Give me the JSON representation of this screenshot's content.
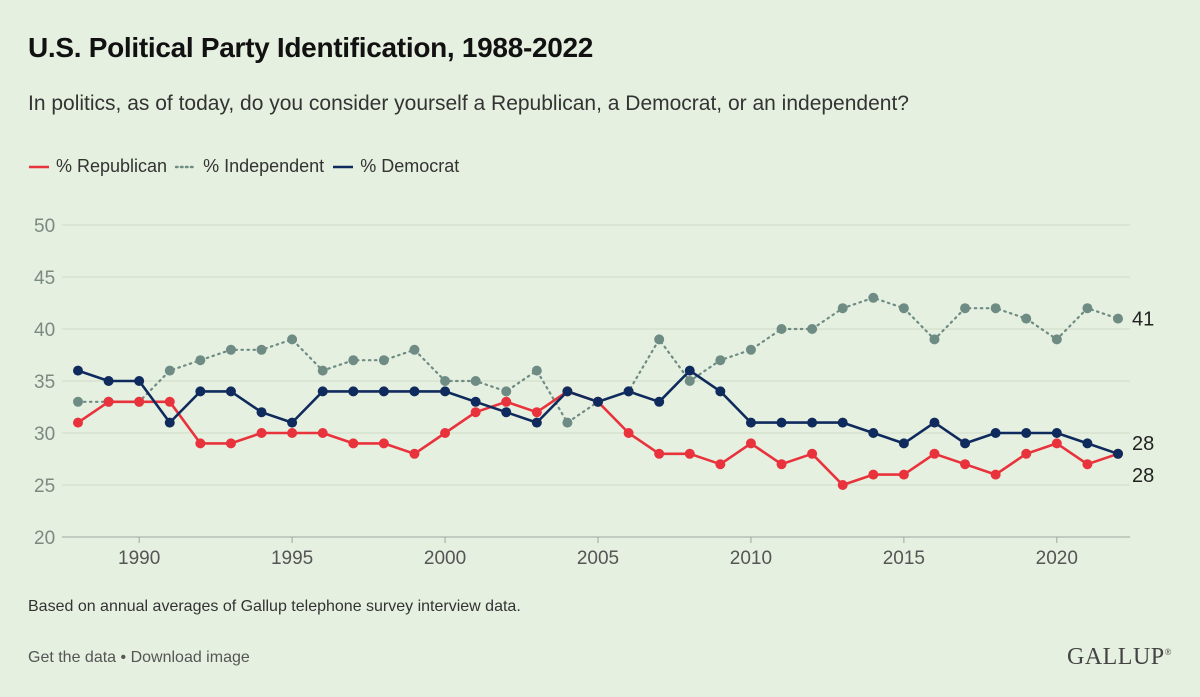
{
  "header": {
    "title": "U.S. Political Party Identification, 1988-2022",
    "subtitle": "In politics, as of today, do you consider yourself a Republican, a Democrat, or an independent?"
  },
  "footer": {
    "note": "Based on annual averages of Gallup telephone survey interview data.",
    "get_data": "Get the data",
    "separator": "•",
    "download": "Download image",
    "brand": "GALLUP",
    "brand_mark": "®"
  },
  "chart_data": {
    "type": "line",
    "title": "U.S. Political Party Identification, 1988-2022",
    "xlabel": "",
    "ylabel": "",
    "ylim": [
      20,
      50
    ],
    "xlim": [
      1988,
      2022
    ],
    "yticks": [
      20,
      25,
      30,
      35,
      40,
      45,
      50
    ],
    "xticks": [
      1990,
      1995,
      2000,
      2005,
      2010,
      2015,
      2020
    ],
    "grid": true,
    "legend_position": "top-left",
    "x": [
      1988,
      1989,
      1990,
      1991,
      1992,
      1993,
      1994,
      1995,
      1996,
      1997,
      1998,
      1999,
      2000,
      2001,
      2002,
      2003,
      2004,
      2005,
      2006,
      2007,
      2008,
      2009,
      2010,
      2011,
      2012,
      2013,
      2014,
      2015,
      2016,
      2017,
      2018,
      2019,
      2020,
      2021,
      2022
    ],
    "series": [
      {
        "name": "% Republican",
        "color": "#e8323c",
        "style": "solid",
        "markers": true,
        "end_label": "28",
        "values": [
          31,
          33,
          33,
          33,
          29,
          29,
          30,
          30,
          30,
          29,
          29,
          28,
          30,
          32,
          33,
          32,
          34,
          33,
          30,
          28,
          28,
          27,
          29,
          27,
          28,
          25,
          26,
          26,
          28,
          27,
          26,
          28,
          29,
          27,
          28
        ]
      },
      {
        "name": "% Independent",
        "color": "#6e8c84",
        "style": "dotted",
        "markers": true,
        "end_label": "41",
        "values": [
          33,
          33,
          33,
          36,
          37,
          38,
          38,
          39,
          36,
          37,
          37,
          38,
          35,
          35,
          34,
          36,
          31,
          33,
          34,
          39,
          35,
          37,
          38,
          40,
          40,
          42,
          43,
          42,
          39,
          42,
          42,
          41,
          39,
          42,
          41
        ]
      },
      {
        "name": "% Democrat",
        "color": "#0f2a5c",
        "style": "solid",
        "markers": true,
        "end_label": "28",
        "values": [
          36,
          35,
          35,
          31,
          34,
          34,
          32,
          31,
          34,
          34,
          34,
          34,
          34,
          33,
          32,
          31,
          34,
          33,
          34,
          33,
          36,
          34,
          31,
          31,
          31,
          31,
          30,
          29,
          31,
          29,
          30,
          30,
          30,
          29,
          28
        ]
      }
    ]
  }
}
